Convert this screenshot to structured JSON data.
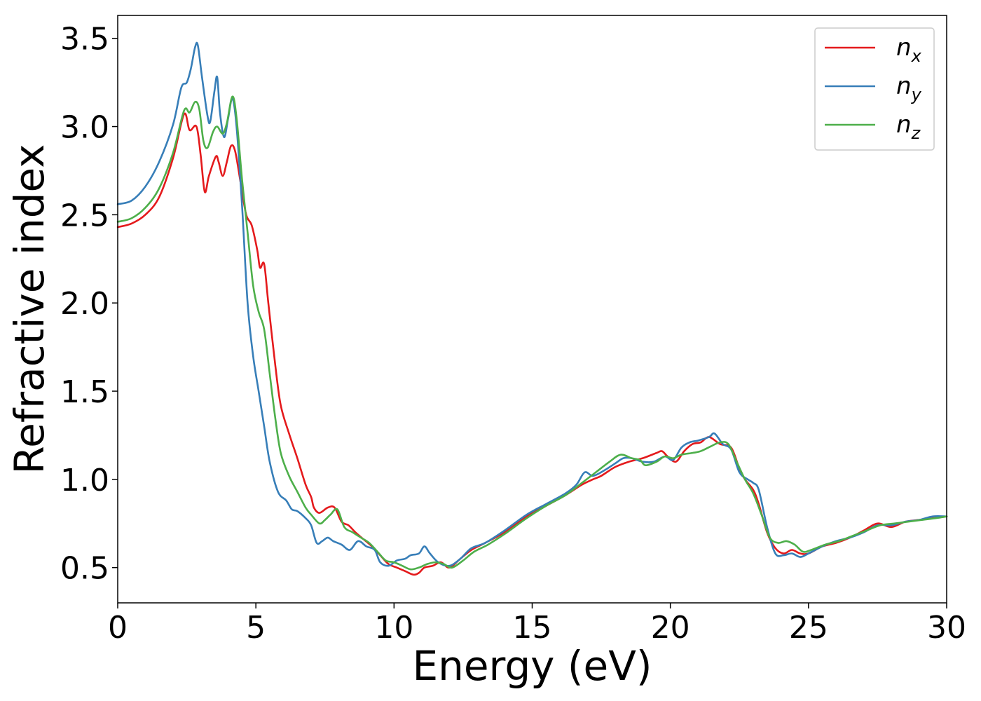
{
  "chart_data": {
    "type": "line",
    "xlabel": "Energy (eV)",
    "ylabel": "Refractive index",
    "xlim": [
      0,
      30
    ],
    "ylim": [
      0.3,
      3.63
    ],
    "xticks": [
      0,
      5,
      10,
      15,
      20,
      25,
      30
    ],
    "xtick_labels": [
      "0",
      "5",
      "10",
      "15",
      "20",
      "25",
      "30"
    ],
    "yticks": [
      0.5,
      1.0,
      1.5,
      2.0,
      2.5,
      3.0,
      3.5
    ],
    "ytick_labels": [
      "0.5",
      "1.0",
      "1.5",
      "2.0",
      "2.5",
      "3.0",
      "3.5"
    ],
    "grid": false,
    "legend_position": "top-right",
    "series": [
      {
        "name": "n_x",
        "label_base": "n",
        "label_sub": "x",
        "color": "#e41a1c",
        "points": [
          [
            0,
            2.43
          ],
          [
            0.5,
            2.45
          ],
          [
            1.0,
            2.5
          ],
          [
            1.5,
            2.6
          ],
          [
            2.0,
            2.82
          ],
          [
            2.4,
            3.07
          ],
          [
            2.6,
            2.98
          ],
          [
            2.85,
            3.0
          ],
          [
            3.0,
            2.84
          ],
          [
            3.15,
            2.63
          ],
          [
            3.3,
            2.72
          ],
          [
            3.55,
            2.83
          ],
          [
            3.65,
            2.8
          ],
          [
            3.8,
            2.72
          ],
          [
            3.95,
            2.8
          ],
          [
            4.1,
            2.89
          ],
          [
            4.25,
            2.86
          ],
          [
            4.45,
            2.68
          ],
          [
            4.65,
            2.5
          ],
          [
            4.85,
            2.44
          ],
          [
            5.05,
            2.3
          ],
          [
            5.15,
            2.2
          ],
          [
            5.3,
            2.22
          ],
          [
            5.45,
            2.0
          ],
          [
            5.7,
            1.65
          ],
          [
            5.9,
            1.42
          ],
          [
            6.2,
            1.26
          ],
          [
            6.5,
            1.12
          ],
          [
            6.8,
            0.97
          ],
          [
            7.0,
            0.9
          ],
          [
            7.1,
            0.84
          ],
          [
            7.3,
            0.81
          ],
          [
            7.6,
            0.84
          ],
          [
            7.85,
            0.84
          ],
          [
            8.1,
            0.76
          ],
          [
            8.35,
            0.74
          ],
          [
            8.6,
            0.7
          ],
          [
            8.9,
            0.66
          ],
          [
            9.2,
            0.62
          ],
          [
            9.5,
            0.57
          ],
          [
            9.8,
            0.52
          ],
          [
            10.1,
            0.5
          ],
          [
            10.4,
            0.48
          ],
          [
            10.7,
            0.46
          ],
          [
            10.9,
            0.47
          ],
          [
            11.1,
            0.5
          ],
          [
            11.4,
            0.51
          ],
          [
            11.7,
            0.53
          ],
          [
            12.0,
            0.5
          ],
          [
            12.4,
            0.55
          ],
          [
            12.8,
            0.6
          ],
          [
            13.3,
            0.64
          ],
          [
            14.0,
            0.7
          ],
          [
            14.8,
            0.79
          ],
          [
            15.5,
            0.85
          ],
          [
            16.2,
            0.91
          ],
          [
            16.8,
            0.97
          ],
          [
            17.2,
            1.0
          ],
          [
            17.5,
            1.02
          ],
          [
            18.0,
            1.07
          ],
          [
            18.5,
            1.1
          ],
          [
            19.0,
            1.12
          ],
          [
            19.5,
            1.15
          ],
          [
            19.7,
            1.16
          ],
          [
            19.9,
            1.13
          ],
          [
            20.2,
            1.1
          ],
          [
            20.5,
            1.16
          ],
          [
            20.8,
            1.2
          ],
          [
            21.1,
            1.21
          ],
          [
            21.4,
            1.24
          ],
          [
            21.8,
            1.2
          ],
          [
            22.2,
            1.18
          ],
          [
            22.5,
            1.06
          ],
          [
            22.7,
            1.0
          ],
          [
            23.0,
            0.94
          ],
          [
            23.2,
            0.86
          ],
          [
            23.5,
            0.7
          ],
          [
            23.8,
            0.61
          ],
          [
            24.1,
            0.58
          ],
          [
            24.4,
            0.6
          ],
          [
            24.7,
            0.58
          ],
          [
            25.0,
            0.58
          ],
          [
            25.5,
            0.62
          ],
          [
            26.0,
            0.64
          ],
          [
            26.5,
            0.67
          ],
          [
            27.0,
            0.71
          ],
          [
            27.5,
            0.75
          ],
          [
            28.0,
            0.73
          ],
          [
            28.5,
            0.76
          ],
          [
            29.0,
            0.77
          ],
          [
            29.5,
            0.78
          ],
          [
            30.0,
            0.79
          ]
        ]
      },
      {
        "name": "n_y",
        "label_base": "n",
        "label_sub": "y",
        "color": "#377eb8",
        "points": [
          [
            0,
            2.56
          ],
          [
            0.5,
            2.58
          ],
          [
            1.0,
            2.66
          ],
          [
            1.5,
            2.8
          ],
          [
            2.0,
            3.01
          ],
          [
            2.3,
            3.22
          ],
          [
            2.5,
            3.25
          ],
          [
            2.65,
            3.33
          ],
          [
            2.8,
            3.45
          ],
          [
            2.9,
            3.46
          ],
          [
            3.05,
            3.28
          ],
          [
            3.25,
            3.06
          ],
          [
            3.35,
            3.03
          ],
          [
            3.5,
            3.2
          ],
          [
            3.6,
            3.28
          ],
          [
            3.7,
            3.08
          ],
          [
            3.85,
            2.94
          ],
          [
            4.0,
            3.05
          ],
          [
            4.15,
            3.16
          ],
          [
            4.3,
            3.0
          ],
          [
            4.5,
            2.55
          ],
          [
            4.7,
            2.0
          ],
          [
            4.9,
            1.7
          ],
          [
            5.1,
            1.5
          ],
          [
            5.3,
            1.3
          ],
          [
            5.5,
            1.1
          ],
          [
            5.8,
            0.93
          ],
          [
            6.1,
            0.88
          ],
          [
            6.3,
            0.83
          ],
          [
            6.5,
            0.82
          ],
          [
            6.8,
            0.78
          ],
          [
            7.0,
            0.74
          ],
          [
            7.2,
            0.64
          ],
          [
            7.4,
            0.65
          ],
          [
            7.6,
            0.67
          ],
          [
            7.8,
            0.65
          ],
          [
            8.1,
            0.63
          ],
          [
            8.4,
            0.6
          ],
          [
            8.7,
            0.65
          ],
          [
            9.0,
            0.62
          ],
          [
            9.3,
            0.6
          ],
          [
            9.5,
            0.53
          ],
          [
            9.8,
            0.51
          ],
          [
            10.1,
            0.54
          ],
          [
            10.4,
            0.55
          ],
          [
            10.6,
            0.57
          ],
          [
            10.9,
            0.58
          ],
          [
            11.1,
            0.62
          ],
          [
            11.3,
            0.58
          ],
          [
            11.6,
            0.53
          ],
          [
            12.0,
            0.51
          ],
          [
            12.4,
            0.55
          ],
          [
            12.8,
            0.61
          ],
          [
            13.3,
            0.64
          ],
          [
            14.0,
            0.71
          ],
          [
            14.8,
            0.8
          ],
          [
            15.5,
            0.86
          ],
          [
            16.2,
            0.92
          ],
          [
            16.6,
            0.97
          ],
          [
            16.9,
            1.04
          ],
          [
            17.2,
            1.02
          ],
          [
            17.6,
            1.05
          ],
          [
            18.0,
            1.09
          ],
          [
            18.3,
            1.12
          ],
          [
            18.6,
            1.12
          ],
          [
            19.0,
            1.1
          ],
          [
            19.4,
            1.1
          ],
          [
            19.8,
            1.13
          ],
          [
            20.1,
            1.11
          ],
          [
            20.4,
            1.18
          ],
          [
            20.7,
            1.21
          ],
          [
            21.0,
            1.22
          ],
          [
            21.4,
            1.24
          ],
          [
            21.6,
            1.26
          ],
          [
            21.9,
            1.2
          ],
          [
            22.2,
            1.17
          ],
          [
            22.5,
            1.04
          ],
          [
            22.8,
            1.0
          ],
          [
            23.0,
            0.98
          ],
          [
            23.2,
            0.94
          ],
          [
            23.5,
            0.73
          ],
          [
            23.8,
            0.58
          ],
          [
            24.1,
            0.57
          ],
          [
            24.4,
            0.58
          ],
          [
            24.7,
            0.56
          ],
          [
            25.0,
            0.58
          ],
          [
            25.5,
            0.62
          ],
          [
            26.0,
            0.65
          ],
          [
            26.5,
            0.67
          ],
          [
            27.0,
            0.7
          ],
          [
            27.5,
            0.74
          ],
          [
            28.0,
            0.74
          ],
          [
            28.5,
            0.76
          ],
          [
            29.0,
            0.77
          ],
          [
            29.5,
            0.79
          ],
          [
            30.0,
            0.79
          ]
        ]
      },
      {
        "name": "n_z",
        "label_base": "n",
        "label_sub": "z",
        "color": "#4daf4a",
        "points": [
          [
            0,
            2.46
          ],
          [
            0.5,
            2.48
          ],
          [
            1.0,
            2.54
          ],
          [
            1.5,
            2.65
          ],
          [
            2.0,
            2.85
          ],
          [
            2.4,
            3.09
          ],
          [
            2.6,
            3.08
          ],
          [
            2.8,
            3.14
          ],
          [
            2.95,
            3.1
          ],
          [
            3.1,
            2.92
          ],
          [
            3.25,
            2.88
          ],
          [
            3.45,
            2.97
          ],
          [
            3.6,
            3.0
          ],
          [
            3.8,
            2.96
          ],
          [
            3.95,
            3.02
          ],
          [
            4.15,
            3.17
          ],
          [
            4.3,
            3.05
          ],
          [
            4.5,
            2.7
          ],
          [
            4.7,
            2.4
          ],
          [
            4.9,
            2.1
          ],
          [
            5.1,
            1.95
          ],
          [
            5.3,
            1.85
          ],
          [
            5.5,
            1.6
          ],
          [
            5.7,
            1.35
          ],
          [
            5.9,
            1.15
          ],
          [
            6.2,
            1.02
          ],
          [
            6.5,
            0.93
          ],
          [
            6.8,
            0.84
          ],
          [
            7.0,
            0.8
          ],
          [
            7.3,
            0.75
          ],
          [
            7.5,
            0.77
          ],
          [
            7.7,
            0.8
          ],
          [
            7.95,
            0.83
          ],
          [
            8.2,
            0.73
          ],
          [
            8.5,
            0.7
          ],
          [
            8.8,
            0.67
          ],
          [
            9.1,
            0.64
          ],
          [
            9.4,
            0.59
          ],
          [
            9.7,
            0.54
          ],
          [
            10.0,
            0.53
          ],
          [
            10.3,
            0.51
          ],
          [
            10.6,
            0.49
          ],
          [
            10.9,
            0.5
          ],
          [
            11.2,
            0.52
          ],
          [
            11.5,
            0.53
          ],
          [
            11.8,
            0.52
          ],
          [
            12.1,
            0.5
          ],
          [
            12.5,
            0.54
          ],
          [
            12.9,
            0.59
          ],
          [
            13.4,
            0.63
          ],
          [
            14.0,
            0.69
          ],
          [
            14.8,
            0.78
          ],
          [
            15.5,
            0.85
          ],
          [
            16.2,
            0.91
          ],
          [
            16.8,
            0.98
          ],
          [
            17.3,
            1.04
          ],
          [
            17.8,
            1.1
          ],
          [
            18.2,
            1.14
          ],
          [
            18.6,
            1.12
          ],
          [
            18.9,
            1.11
          ],
          [
            19.1,
            1.08
          ],
          [
            19.5,
            1.1
          ],
          [
            19.8,
            1.13
          ],
          [
            20.1,
            1.12
          ],
          [
            20.4,
            1.14
          ],
          [
            20.8,
            1.15
          ],
          [
            21.1,
            1.16
          ],
          [
            21.5,
            1.19
          ],
          [
            21.8,
            1.21
          ],
          [
            22.1,
            1.2
          ],
          [
            22.4,
            1.1
          ],
          [
            22.7,
            1.0
          ],
          [
            23.0,
            0.92
          ],
          [
            23.3,
            0.8
          ],
          [
            23.6,
            0.67
          ],
          [
            23.9,
            0.64
          ],
          [
            24.2,
            0.65
          ],
          [
            24.5,
            0.63
          ],
          [
            24.8,
            0.59
          ],
          [
            25.1,
            0.6
          ],
          [
            25.6,
            0.63
          ],
          [
            26.1,
            0.65
          ],
          [
            26.6,
            0.68
          ],
          [
            27.1,
            0.71
          ],
          [
            27.6,
            0.74
          ],
          [
            28.1,
            0.75
          ],
          [
            28.6,
            0.76
          ],
          [
            29.1,
            0.77
          ],
          [
            29.6,
            0.78
          ],
          [
            30.0,
            0.79
          ]
        ]
      }
    ]
  }
}
